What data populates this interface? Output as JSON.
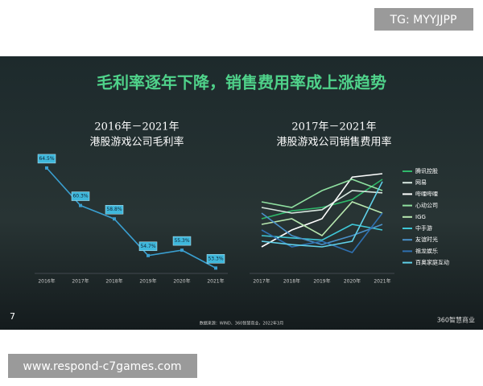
{
  "watermark": "TG: MYYJJPP",
  "site": "www.respond-c7games.com",
  "slide": {
    "title": "毛利率逐年下降，销售费用率成上涨趋势",
    "page_number": "7",
    "source": "数据来源：WIND、360智慧商业，2022年3月",
    "logo": "360智慧商业"
  },
  "chart_data": [
    {
      "type": "line",
      "title": "2016年－2021年",
      "subtitle": "港股游戏公司毛利率",
      "categories": [
        "2016年",
        "2017年",
        "2018年",
        "2019年",
        "2020年",
        "2021年"
      ],
      "values": [
        64.5,
        60.3,
        58.8,
        54.7,
        55.3,
        53.3
      ],
      "value_labels": [
        "64.5%",
        "60.3%",
        "58.8%",
        "54.7%",
        "55.3%",
        "53.3%"
      ],
      "color": "#3a9fd0",
      "ylim": [
        50,
        68
      ]
    },
    {
      "type": "line",
      "title": "2017年－2021年",
      "subtitle": "港股游戏公司销售费用率",
      "categories": [
        "2017年",
        "2018年",
        "2019年",
        "2020年",
        "2021年"
      ],
      "ylim": [
        0,
        100
      ],
      "series": [
        {
          "name": "腾讯控股",
          "color": "#2fb86a",
          "values": [
            45,
            52,
            55,
            62,
            80
          ]
        },
        {
          "name": "网易",
          "color": "#d8e8e0",
          "values": [
            55,
            50,
            53,
            70,
            68
          ]
        },
        {
          "name": "哔哩哔哩",
          "color": "#ffffff",
          "values": [
            20,
            35,
            45,
            82,
            85
          ]
        },
        {
          "name": "心动公司",
          "color": "#8fe0a0",
          "values": [
            60,
            55,
            70,
            80,
            70
          ]
        },
        {
          "name": "IGG",
          "color": "#b8e8b0",
          "values": [
            40,
            45,
            30,
            60,
            50
          ]
        },
        {
          "name": "中手游",
          "color": "#3fc8d8",
          "values": [
            30,
            28,
            26,
            40,
            35
          ]
        },
        {
          "name": "友谊时光",
          "color": "#4a90c8",
          "values": [
            50,
            30,
            22,
            30,
            40
          ]
        },
        {
          "name": "祖龙娱乐",
          "color": "#2f70b0",
          "values": [
            35,
            20,
            25,
            15,
            50
          ]
        },
        {
          "name": "百奥家庭互动",
          "color": "#60d0e8",
          "values": [
            25,
            22,
            20,
            25,
            78
          ]
        }
      ]
    }
  ]
}
